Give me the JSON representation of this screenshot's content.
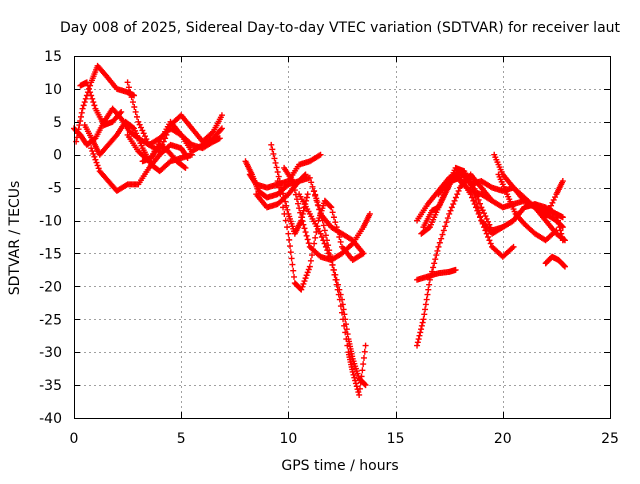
{
  "chart_data": {
    "type": "scatter",
    "title": "Day 008 of 2025, Sidereal Day-to-day VTEC variation (SDTVAR) for receiver laut",
    "xlabel": "GPS time / hours",
    "ylabel": "SDTVAR / TECUs",
    "xlim": [
      0,
      25
    ],
    "ylim": [
      -40,
      15
    ],
    "xticks": [
      0,
      5,
      10,
      15,
      20,
      25
    ],
    "yticks": [
      15,
      10,
      5,
      0,
      -5,
      -10,
      -15,
      -20,
      -25,
      -30,
      -35,
      -40
    ],
    "grid": true,
    "marker": "plus",
    "color": "#ff0000",
    "series": [
      {
        "x": [
          0.0,
          0.3,
          0.6,
          1.0,
          1.4,
          1.8,
          2.2,
          2.6,
          3.0,
          3.5,
          4.0,
          4.5,
          5.0,
          5.5,
          6.0,
          6.5,
          6.8
        ],
        "values": [
          4.0,
          3.0,
          1.5,
          2.5,
          5.0,
          7.0,
          5.5,
          3.5,
          2.5,
          1.5,
          2.5,
          4.0,
          3.0,
          1.5,
          1.0,
          2.0,
          2.5
        ]
      },
      {
        "x": [
          0.1,
          0.4,
          0.8,
          1.1,
          1.5,
          2.0,
          2.5,
          2.8
        ],
        "values": [
          2.0,
          7.0,
          11.0,
          13.5,
          12.0,
          10.0,
          9.5,
          9.0
        ]
      },
      {
        "x": [
          0.3,
          0.6,
          1.0,
          1.4,
          1.8,
          2.2
        ],
        "values": [
          10.5,
          11.0,
          7.0,
          4.5,
          5.0,
          6.5
        ]
      },
      {
        "x": [
          0.5,
          0.9,
          1.2,
          1.6,
          2.0,
          2.4,
          2.8,
          3.2,
          3.6,
          4.0,
          4.5,
          5.0,
          5.5
        ],
        "values": [
          4.5,
          2.0,
          0.0,
          1.5,
          3.0,
          5.0,
          4.0,
          1.0,
          -1.5,
          -2.5,
          -1.0,
          -0.5,
          0.0
        ]
      },
      {
        "x": [
          0.8,
          1.2,
          1.6,
          2.0,
          2.5,
          3.0,
          3.5,
          4.0,
          4.5,
          5.0,
          5.3
        ],
        "values": [
          1.0,
          -2.5,
          -4.0,
          -5.5,
          -4.5,
          -4.5,
          -2.0,
          0.0,
          1.5,
          1.0,
          -0.5
        ]
      },
      {
        "x": [
          2.5,
          3.0,
          3.5,
          4.0,
          4.5,
          5.0,
          5.5,
          6.0,
          6.5,
          6.9
        ],
        "values": [
          11.0,
          5.0,
          1.5,
          0.5,
          4.5,
          6.0,
          4.0,
          2.0,
          3.5,
          6.0
        ]
      },
      {
        "x": [
          2.5,
          3.0,
          3.5,
          4.0,
          4.5,
          5.0,
          5.5,
          6.0,
          6.5,
          6.9
        ],
        "values": [
          3.0,
          0.5,
          -1.0,
          2.0,
          5.0,
          3.0,
          0.5,
          1.5,
          2.5,
          4.0
        ]
      },
      {
        "x": [
          3.2,
          3.6,
          4.0,
          4.4,
          4.8,
          5.2
        ],
        "values": [
          -1.0,
          -0.5,
          1.5,
          0.5,
          -1.0,
          -2.0
        ]
      },
      {
        "x": [
          8.0,
          8.3,
          8.6,
          9.0,
          9.5,
          10.0,
          10.5,
          11.0,
          11.5,
          12.0,
          12.5,
          13.0,
          13.5
        ],
        "values": [
          -1.0,
          -3.0,
          -5.5,
          -6.5,
          -6.0,
          -4.5,
          -4.0,
          -3.5,
          -9.0,
          -11.0,
          -12.0,
          -13.0,
          -15.0
        ]
      },
      {
        "x": [
          8.2,
          8.5,
          9.0,
          9.5,
          10.0,
          10.5,
          11.0,
          11.5
        ],
        "values": [
          -3.0,
          -4.5,
          -5.0,
          -4.5,
          -4.0,
          -1.5,
          -1.0,
          0.0
        ]
      },
      {
        "x": [
          8.5,
          9.0,
          9.5,
          10.0,
          10.5,
          10.8
        ],
        "values": [
          -6.0,
          -8.0,
          -7.5,
          -6.0,
          -4.0,
          -3.0
        ]
      },
      {
        "x": [
          9.2,
          9.6,
          10.0,
          10.3,
          10.6,
          10.9
        ],
        "values": [
          1.5,
          -4.0,
          -9.0,
          -12.0,
          -10.0,
          -6.0
        ]
      },
      {
        "x": [
          9.5,
          10.0,
          10.3,
          10.6,
          11.0,
          11.4,
          11.7,
          12.0,
          12.5,
          13.0,
          13.5
        ],
        "values": [
          -4.0,
          -12.0,
          -19.5,
          -20.5,
          -17.0,
          -10.0,
          -7.0,
          -8.0,
          -14.0,
          -16.0,
          -15.0
        ]
      },
      {
        "x": [
          9.8,
          10.2,
          10.6,
          11.0,
          11.5,
          12.0,
          12.5,
          13.0,
          13.5,
          13.8
        ],
        "values": [
          -2.0,
          -4.0,
          -9.5,
          -14.0,
          -15.5,
          -16.0,
          -15.0,
          -13.5,
          -11.0,
          -9.0
        ]
      },
      {
        "x": [
          10.5,
          11.0,
          11.5,
          12.0,
          12.5,
          12.8,
          13.0,
          13.3,
          13.6
        ],
        "values": [
          -6.0,
          -9.0,
          -12.0,
          -16.0,
          -22.0,
          -28.0,
          -31.0,
          -34.0,
          -35.0
        ]
      },
      {
        "x": [
          11.2,
          11.6,
          12.0,
          12.4,
          12.8,
          13.0,
          13.3,
          13.6
        ],
        "values": [
          -5.5,
          -10.0,
          -16.0,
          -22.0,
          -30.0,
          -33.0,
          -36.5,
          -29.0
        ]
      },
      {
        "x": [
          16.0,
          16.3,
          16.6,
          17.0,
          17.5,
          18.0,
          18.5,
          19.0,
          19.5
        ],
        "values": [
          -29.0,
          -25.0,
          -19.0,
          -14.0,
          -9.0,
          -5.0,
          -3.0,
          -5.0,
          -7.0
        ]
      },
      {
        "x": [
          16.0,
          16.5,
          17.0,
          17.5,
          17.8
        ],
        "values": [
          -19.0,
          -18.5,
          -18.0,
          -17.8,
          -17.5
        ]
      },
      {
        "x": [
          16.0,
          16.5,
          17.0,
          17.5,
          18.0,
          18.5,
          19.0,
          19.5,
          20.0,
          20.5,
          21.0,
          21.5,
          22.0,
          22.5,
          22.8
        ],
        "values": [
          -10.0,
          -7.5,
          -5.5,
          -3.5,
          -2.5,
          -4.5,
          -4.0,
          -5.0,
          -5.5,
          -5.0,
          -7.0,
          -8.0,
          -9.0,
          -10.0,
          -11.0
        ]
      },
      {
        "x": [
          16.2,
          16.6,
          17.0,
          17.4,
          17.8,
          18.2,
          18.6,
          19.0,
          19.5,
          20.0,
          20.5,
          21.0,
          21.5,
          22.0,
          22.5,
          22.8
        ],
        "values": [
          -12.0,
          -11.0,
          -8.0,
          -5.0,
          -2.0,
          -2.5,
          -5.0,
          -10.0,
          -12.0,
          -11.0,
          -10.0,
          -8.0,
          -7.5,
          -8.0,
          -9.0,
          -13.0
        ]
      },
      {
        "x": [
          16.3,
          16.7,
          17.0,
          17.3,
          17.6,
          18.0,
          18.5,
          19.0,
          19.5,
          20.0,
          20.5
        ],
        "values": [
          -11.0,
          -8.5,
          -8.0,
          -6.0,
          -4.0,
          -3.5,
          -6.0,
          -10.0,
          -14.0,
          -15.5,
          -14.0
        ]
      },
      {
        "x": [
          17.0,
          17.5,
          18.0,
          18.5,
          19.0,
          19.5,
          20.0,
          20.5,
          21.0,
          21.5,
          22.0,
          22.5,
          22.8
        ],
        "values": [
          -6.0,
          -4.0,
          -3.0,
          -3.5,
          -8.0,
          -11.5,
          -11.0,
          -10.0,
          -8.0,
          -7.5,
          -8.5,
          -9.0,
          -9.5
        ]
      },
      {
        "x": [
          18.0,
          18.5,
          19.0,
          19.5,
          20.0,
          20.5,
          21.0,
          21.5,
          22.0,
          22.5,
          22.8
        ],
        "values": [
          -4.0,
          -5.5,
          -6.0,
          -7.0,
          -8.0,
          -7.5,
          -7.0,
          -8.0,
          -9.5,
          -6.0,
          -4.0
        ]
      },
      {
        "x": [
          19.6,
          20.0,
          20.5,
          21.0,
          21.5,
          22.0,
          22.5,
          22.9
        ],
        "values": [
          0.0,
          -3.0,
          -5.0,
          -6.5,
          -8.0,
          -10.0,
          -12.0,
          -13.0
        ]
      },
      {
        "x": [
          19.8,
          20.2,
          20.6,
          21.0,
          21.5,
          22.0,
          22.5
        ],
        "values": [
          -3.0,
          -6.0,
          -9.0,
          -10.5,
          -12.0,
          -13.0,
          -11.5
        ]
      },
      {
        "x": [
          22.0,
          22.3,
          22.6,
          22.9
        ],
        "values": [
          -16.5,
          -15.5,
          -16.0,
          -17.0
        ]
      }
    ]
  }
}
